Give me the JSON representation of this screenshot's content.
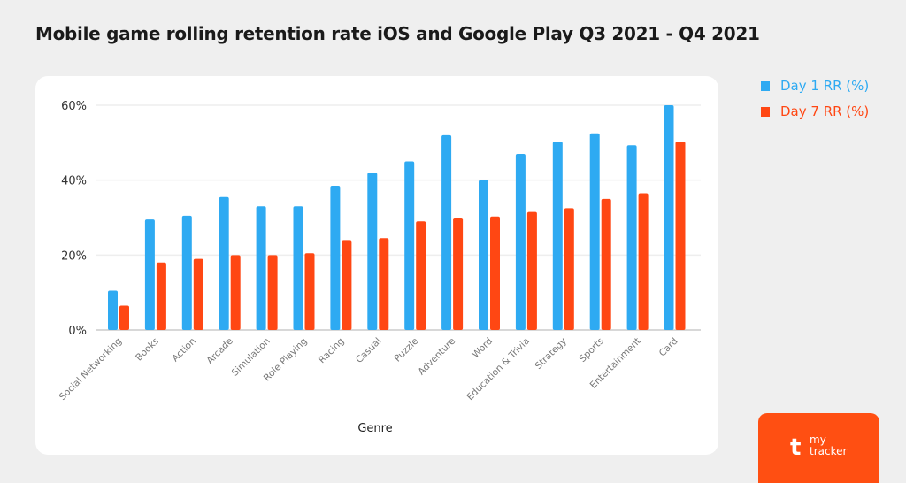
{
  "chart_data": {
    "type": "bar",
    "title": "Mobile game rolling retention rate iOS and Google Play Q3 2021 - Q4 2021",
    "xlabel": "Genre",
    "ylabel": "",
    "ylim": [
      0,
      60
    ],
    "yticks": [
      "0%",
      "20%",
      "40%",
      "60%"
    ],
    "grid": true,
    "legend_position": "right",
    "categories": [
      "Social Networking",
      "Books",
      "Action",
      "Arcade",
      "Simulation",
      "Role Playing",
      "Racing",
      "Casual",
      "Puzzle",
      "Adventure",
      "Word",
      "Education & Trivia",
      "Strategy",
      "Sports",
      "Entertainment",
      "Card"
    ],
    "series": [
      {
        "name": "Day 1 RR (%)",
        "color": "#2eaaf2",
        "values": [
          10.5,
          29.5,
          30.5,
          35.5,
          33,
          33,
          38.5,
          42,
          45,
          52,
          40,
          47,
          50.3,
          52.5,
          49.3,
          60
        ]
      },
      {
        "name": "Day 7 RR (%)",
        "color": "#ff4713",
        "values": [
          6.5,
          18,
          19,
          20,
          20,
          20.5,
          24,
          24.5,
          29,
          30,
          30.3,
          31.5,
          32.5,
          35,
          36.5,
          50.3
        ]
      }
    ]
  },
  "logo": {
    "text": "my tracker"
  }
}
